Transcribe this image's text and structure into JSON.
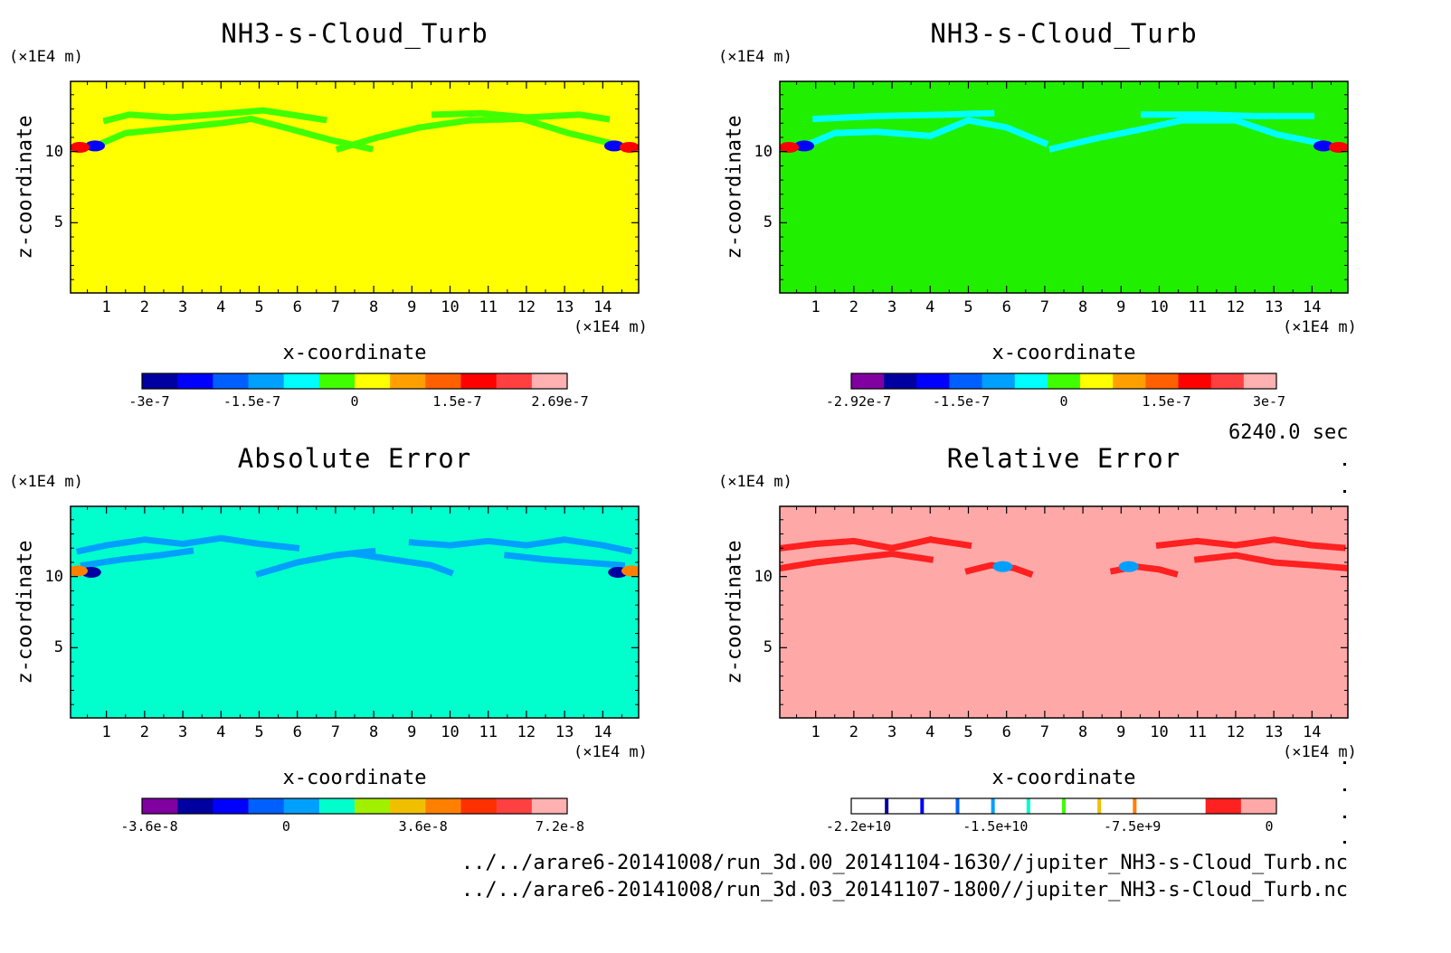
{
  "time_label": "6240.0 sec",
  "files": [
    "../../arare6-20141008/run_3d.00_20141104-1630//jupiter_NH3-s-Cloud_Turb.nc",
    "../../arare6-20141008/run_3d.03_20141107-1800//jupiter_NH3-s-Cloud_Turb.nc"
  ],
  "chart_data": [
    {
      "type": "heatmap",
      "title": "NH3-s-Cloud_Turb",
      "xlabel": "x-coordinate",
      "ylabel": "z-coordinate",
      "x_unit": "(×1E4 m)",
      "y_unit": "(×1E4 m)",
      "xlim": [
        0.06,
        14.94
      ],
      "ylim": [
        0.06,
        14.94
      ],
      "x_ticks": [
        1,
        2,
        3,
        4,
        5,
        6,
        7,
        8,
        9,
        10,
        11,
        12,
        13,
        14
      ],
      "y_ticks": [
        5,
        10
      ],
      "background_color": "#ffff00",
      "colorbar": {
        "colors": [
          "#0000a0",
          "#0000ff",
          "#0060ff",
          "#00a0ff",
          "#00ffff",
          "#40ff00",
          "#ffff00",
          "#ffa000",
          "#ff6000",
          "#ff0000",
          "#ff4040",
          "#ffb0b0"
        ],
        "tick_labels": [
          "-3e-7",
          "-1.5e-7",
          "0",
          "1.5e-7",
          "2.69e-7"
        ]
      },
      "features": [
        {
          "kind": "band",
          "color": "#40ff00",
          "points": [
            [
              0.8,
              10.5
            ],
            [
              1.5,
              11.3
            ],
            [
              2.6,
              11.6
            ],
            [
              4.0,
              12.0
            ],
            [
              4.8,
              12.3
            ],
            [
              5.8,
              11.6
            ],
            [
              6.9,
              10.8
            ],
            [
              7.9,
              10.2
            ]
          ]
        },
        {
          "kind": "band",
          "color": "#40ff00",
          "points": [
            [
              7.1,
              10.2
            ],
            [
              8.1,
              11.0
            ],
            [
              9.2,
              11.7
            ],
            [
              10.5,
              12.2
            ],
            [
              11.9,
              12.3
            ],
            [
              13.1,
              11.3
            ],
            [
              14.2,
              10.6
            ]
          ]
        },
        {
          "kind": "band",
          "color": "#40ff00",
          "points": [
            [
              1.0,
              12.2
            ],
            [
              1.6,
              12.6
            ],
            [
              2.7,
              12.4
            ],
            [
              3.8,
              12.6
            ],
            [
              5.1,
              12.9
            ],
            [
              6.8,
              12.2
            ]
          ]
        },
        {
          "kind": "band",
          "color": "#40ff00",
          "points": [
            [
              9.6,
              12.6
            ],
            [
              10.8,
              12.7
            ],
            [
              12.0,
              12.4
            ],
            [
              13.4,
              12.6
            ],
            [
              14.1,
              12.3
            ]
          ]
        },
        {
          "kind": "blob",
          "color": "#0000ff",
          "x": 0.7,
          "y": 10.4
        },
        {
          "kind": "blob",
          "color": "#0000ff",
          "x": 14.3,
          "y": 10.4
        },
        {
          "kind": "blob",
          "color": "#ff0000",
          "x": 0.3,
          "y": 10.3
        },
        {
          "kind": "blob",
          "color": "#ff0000",
          "x": 14.7,
          "y": 10.3
        }
      ]
    },
    {
      "type": "heatmap",
      "title": "NH3-s-Cloud_Turb",
      "xlabel": "x-coordinate",
      "ylabel": "z-coordinate",
      "x_unit": "(×1E4 m)",
      "y_unit": "(×1E4 m)",
      "xlim": [
        0.06,
        14.94
      ],
      "ylim": [
        0.06,
        14.94
      ],
      "x_ticks": [
        1,
        2,
        3,
        4,
        5,
        6,
        7,
        8,
        9,
        10,
        11,
        12,
        13,
        14
      ],
      "y_ticks": [
        5,
        10
      ],
      "background_color": "#20f000",
      "colorbar": {
        "colors": [
          "#8000a0",
          "#0000a0",
          "#0000ff",
          "#0060ff",
          "#00a0ff",
          "#00ffff",
          "#40ff00",
          "#ffff00",
          "#ffa000",
          "#ff6000",
          "#ff0000",
          "#ff4040",
          "#ffb0b0"
        ],
        "tick_labels": [
          "-2.92e-7",
          "-1.5e-7",
          "0",
          "1.5e-7",
          "3e-7"
        ]
      },
      "features": [
        {
          "kind": "band",
          "color": "#00ffff",
          "points": [
            [
              0.8,
              10.5
            ],
            [
              1.5,
              11.3
            ],
            [
              2.6,
              11.4
            ],
            [
              4.0,
              11.1
            ],
            [
              5.0,
              12.2
            ],
            [
              6.0,
              11.7
            ],
            [
              7.0,
              10.6
            ]
          ]
        },
        {
          "kind": "band",
          "color": "#00ffff",
          "points": [
            [
              7.2,
              10.2
            ],
            [
              8.3,
              10.9
            ],
            [
              9.4,
              11.5
            ],
            [
              10.6,
              12.2
            ],
            [
              12.0,
              12.2
            ],
            [
              13.1,
              11.2
            ],
            [
              14.2,
              10.6
            ]
          ]
        },
        {
          "kind": "band",
          "color": "#00ffff",
          "points": [
            [
              1.0,
              12.3
            ],
            [
              2.6,
              12.5
            ],
            [
              4.4,
              12.6
            ],
            [
              5.6,
              12.7
            ]
          ]
        },
        {
          "kind": "band",
          "color": "#00ffff",
          "points": [
            [
              9.6,
              12.6
            ],
            [
              11.2,
              12.6
            ],
            [
              12.5,
              12.5
            ],
            [
              14.0,
              12.5
            ]
          ]
        },
        {
          "kind": "blob",
          "color": "#0000ff",
          "x": 0.7,
          "y": 10.4
        },
        {
          "kind": "blob",
          "color": "#0000ff",
          "x": 14.3,
          "y": 10.4
        },
        {
          "kind": "blob",
          "color": "#ff0000",
          "x": 0.3,
          "y": 10.3
        },
        {
          "kind": "blob",
          "color": "#ff0000",
          "x": 14.7,
          "y": 10.3
        }
      ]
    },
    {
      "type": "heatmap",
      "title": "Absolute Error",
      "xlabel": "x-coordinate",
      "ylabel": "z-coordinate",
      "x_unit": "(×1E4 m)",
      "y_unit": "(×1E4 m)",
      "xlim": [
        0.06,
        14.94
      ],
      "ylim": [
        0.06,
        14.94
      ],
      "x_ticks": [
        1,
        2,
        3,
        4,
        5,
        6,
        7,
        8,
        9,
        10,
        11,
        12,
        13,
        14
      ],
      "y_ticks": [
        5,
        10
      ],
      "background_color": "#00ffcc",
      "colorbar": {
        "colors": [
          "#8000a0",
          "#0000a0",
          "#0000ff",
          "#0060ff",
          "#00a0ff",
          "#00ffcc",
          "#a0f000",
          "#f0c000",
          "#ff8000",
          "#ff3000",
          "#ff4040",
          "#ffb0b0"
        ],
        "tick_labels": [
          "-3.6e-8",
          "0",
          "3.6e-8",
          "7.2e-8"
        ]
      },
      "features": [
        {
          "kind": "band",
          "color": "#00a0ff",
          "points": [
            [
              0.3,
              11.8
            ],
            [
              1.0,
              12.2
            ],
            [
              2.0,
              12.6
            ],
            [
              3.0,
              12.3
            ],
            [
              4.0,
              12.7
            ],
            [
              5.0,
              12.3
            ],
            [
              6.0,
              12.0
            ]
          ]
        },
        {
          "kind": "band",
          "color": "#00a0ff",
          "points": [
            [
              0.4,
              10.8
            ],
            [
              1.4,
              11.2
            ],
            [
              2.4,
              11.5
            ],
            [
              3.2,
              11.8
            ]
          ]
        },
        {
          "kind": "band",
          "color": "#00a0ff",
          "points": [
            [
              5.0,
              10.2
            ],
            [
              6.0,
              11.0
            ],
            [
              7.0,
              11.5
            ],
            [
              8.0,
              11.8
            ]
          ]
        },
        {
          "kind": "band",
          "color": "#00a0ff",
          "points": [
            [
              7.5,
              11.6
            ],
            [
              8.5,
              11.2
            ],
            [
              9.5,
              10.8
            ],
            [
              10.0,
              10.3
            ]
          ]
        },
        {
          "kind": "band",
          "color": "#00a0ff",
          "points": [
            [
              9.0,
              12.4
            ],
            [
              10.0,
              12.2
            ],
            [
              11.0,
              12.5
            ],
            [
              12.0,
              12.2
            ],
            [
              13.0,
              12.6
            ],
            [
              14.0,
              12.2
            ],
            [
              14.7,
              11.8
            ]
          ]
        },
        {
          "kind": "band",
          "color": "#00a0ff",
          "points": [
            [
              11.5,
              11.5
            ],
            [
              12.5,
              11.2
            ],
            [
              13.5,
              11.0
            ],
            [
              14.5,
              10.8
            ]
          ]
        },
        {
          "kind": "blob",
          "color": "#0000a0",
          "x": 0.6,
          "y": 10.3
        },
        {
          "kind": "blob",
          "color": "#0000a0",
          "x": 14.4,
          "y": 10.3
        },
        {
          "kind": "blob",
          "color": "#ff8000",
          "x": 0.25,
          "y": 10.4
        },
        {
          "kind": "blob",
          "color": "#ff8000",
          "x": 14.75,
          "y": 10.4
        }
      ]
    },
    {
      "type": "heatmap",
      "title": "Relative Error",
      "xlabel": "x-coordinate",
      "ylabel": "z-coordinate",
      "x_unit": "(×1E4 m)",
      "y_unit": "(×1E4 m)",
      "xlim": [
        0.06,
        14.94
      ],
      "ylim": [
        0.06,
        14.94
      ],
      "x_ticks": [
        1,
        2,
        3,
        4,
        5,
        6,
        7,
        8,
        9,
        10,
        11,
        12,
        13,
        14
      ],
      "y_ticks": [
        5,
        10
      ],
      "background_color": "#ffa8a8",
      "colorbar": {
        "colors": [
          "#ffffff",
          "#ffffff",
          "#ffffff",
          "#ffffff",
          "#ffffff",
          "#ffffff",
          "#ffffff",
          "#ffffff",
          "#ffffff",
          "#ffffff",
          "#ff2020",
          "#ffa8a8"
        ],
        "divider_colors": [
          "#0000a0",
          "#0000ff",
          "#0060ff",
          "#00a0ff",
          "#00ffcc",
          "#40ff00",
          "#f0c000",
          "#ff8000"
        ],
        "tick_labels": [
          "-2.2e+10",
          "-1.5e+10",
          "-7.5e+9",
          "0"
        ]
      },
      "features": [
        {
          "kind": "band",
          "color": "#ff2020",
          "points": [
            [
              0.1,
              12.0
            ],
            [
              1.0,
              12.3
            ],
            [
              2.0,
              12.5
            ],
            [
              3.0,
              12.0
            ],
            [
              4.0,
              12.6
            ],
            [
              5.0,
              12.2
            ]
          ]
        },
        {
          "kind": "band",
          "color": "#ff2020",
          "points": [
            [
              0.1,
              10.6
            ],
            [
              1.0,
              11.0
            ],
            [
              2.0,
              11.3
            ],
            [
              3.0,
              11.6
            ],
            [
              4.0,
              11.2
            ]
          ]
        },
        {
          "kind": "band",
          "color": "#ff2020",
          "points": [
            [
              5.0,
              10.4
            ],
            [
              5.6,
              10.8
            ],
            [
              6.2,
              10.6
            ],
            [
              6.6,
              10.2
            ]
          ]
        },
        {
          "kind": "band",
          "color": "#ff2020",
          "points": [
            [
              8.8,
              10.4
            ],
            [
              9.4,
              10.7
            ],
            [
              10.0,
              10.5
            ],
            [
              10.4,
              10.2
            ]
          ]
        },
        {
          "kind": "band",
          "color": "#ff2020",
          "points": [
            [
              10.0,
              12.2
            ],
            [
              11.0,
              12.5
            ],
            [
              12.0,
              12.2
            ],
            [
              13.0,
              12.6
            ],
            [
              14.0,
              12.2
            ],
            [
              14.9,
              12.0
            ]
          ]
        },
        {
          "kind": "band",
          "color": "#ff2020",
          "points": [
            [
              11.0,
              11.2
            ],
            [
              12.0,
              11.5
            ],
            [
              13.0,
              11.0
            ],
            [
              14.0,
              10.8
            ],
            [
              14.9,
              10.6
            ]
          ]
        },
        {
          "kind": "blob",
          "color": "#00a0ff",
          "x": 5.9,
          "y": 10.7
        },
        {
          "kind": "blob",
          "color": "#00a0ff",
          "x": 9.2,
          "y": 10.7
        }
      ]
    }
  ]
}
